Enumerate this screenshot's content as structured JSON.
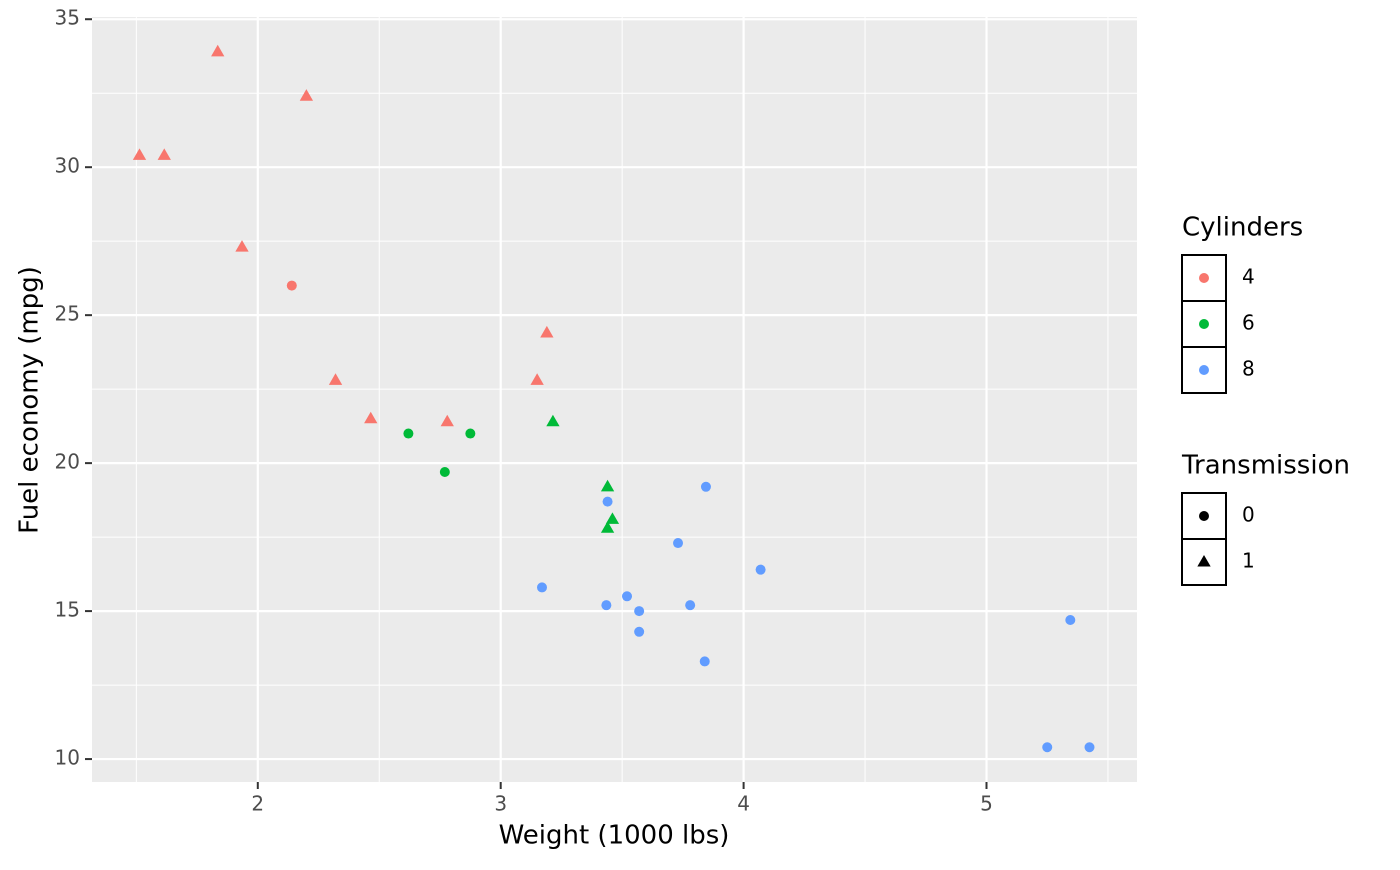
{
  "chart_data": {
    "type": "scatter",
    "x_label": "Weight (1000 lbs)",
    "y_label": "Fuel economy (mpg)",
    "xlim": [
      1.31745,
      5.61955
    ],
    "ylim": [
      9.225,
      35.075
    ],
    "xticks": [
      2,
      3,
      4,
      5
    ],
    "yticks": [
      10,
      15,
      20,
      25,
      30,
      35
    ],
    "x_minor_ticks": [
      1.5,
      2.5,
      3.5,
      4.5,
      5.5
    ],
    "y_minor_ticks": [
      12.5,
      17.5,
      22.5,
      27.5,
      32.5
    ],
    "grid": true,
    "color_legend_title": "Cylinders",
    "shape_legend_title": "Transmission",
    "shape_levels": [
      "0",
      "1"
    ],
    "shapes": [
      "circle",
      "triangle"
    ],
    "series": [
      {
        "name": "4",
        "color": "#F8766D",
        "x": [
          2.32,
          3.19,
          3.15,
          2.2,
          1.615,
          1.835,
          2.465,
          1.935,
          2.14,
          1.513,
          2.78
        ],
        "values": [
          22.8,
          24.4,
          22.8,
          32.4,
          30.4,
          33.9,
          21.5,
          27.3,
          26,
          30.4,
          21.4
        ],
        "shape": [
          1,
          1,
          1,
          1,
          1,
          1,
          1,
          1,
          0,
          1,
          1
        ]
      },
      {
        "name": "6",
        "color": "#00BA38",
        "x": [
          2.62,
          2.875,
          3.215,
          3.46,
          3.44,
          3.44,
          2.77
        ],
        "values": [
          21,
          21,
          21.4,
          18.1,
          19.2,
          17.8,
          19.7
        ],
        "shape": [
          0,
          0,
          1,
          1,
          1,
          1,
          0
        ]
      },
      {
        "name": "8",
        "color": "#619CFF",
        "x": [
          3.44,
          3.57,
          4.07,
          3.73,
          3.78,
          5.25,
          5.424,
          5.345,
          3.52,
          3.435,
          3.84,
          3.845,
          3.17,
          3.57
        ],
        "values": [
          18.7,
          14.3,
          16.4,
          17.3,
          15.2,
          10.4,
          10.4,
          14.7,
          15.5,
          15.2,
          13.3,
          19.2,
          15.8,
          15
        ],
        "shape": [
          0,
          0,
          0,
          0,
          0,
          0,
          0,
          0,
          0,
          0,
          0,
          0,
          0,
          0
        ]
      }
    ]
  }
}
